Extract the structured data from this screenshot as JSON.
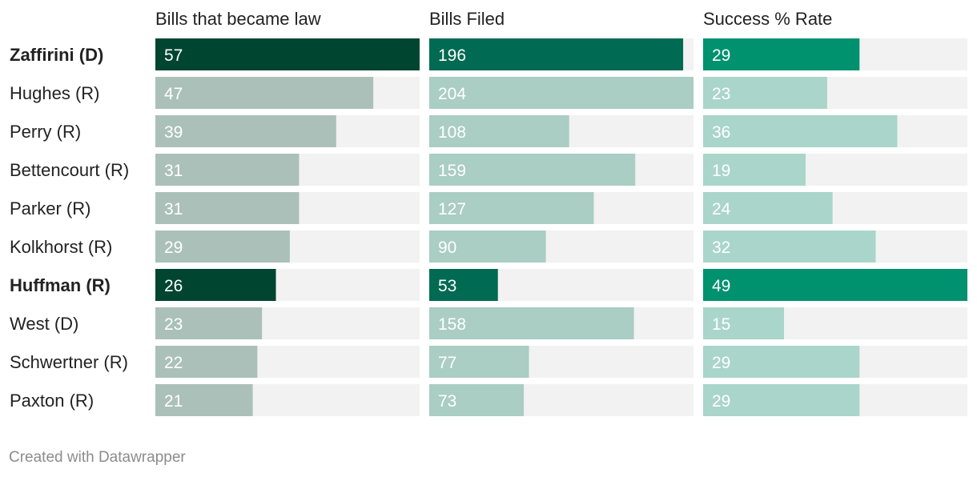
{
  "chart_data": {
    "type": "table",
    "columns": [
      "Bills that became law",
      "Bills Filed",
      "Success % Rate"
    ],
    "rows": [
      {
        "name": "Zaffirini (D)",
        "highlight": true,
        "values": [
          57,
          196,
          29
        ]
      },
      {
        "name": "Hughes (R)",
        "highlight": false,
        "values": [
          47,
          204,
          23
        ]
      },
      {
        "name": "Perry (R)",
        "highlight": false,
        "values": [
          39,
          108,
          36
        ]
      },
      {
        "name": "Bettencourt (R)",
        "highlight": false,
        "values": [
          31,
          159,
          19
        ]
      },
      {
        "name": "Parker (R)",
        "highlight": false,
        "values": [
          31,
          127,
          24
        ]
      },
      {
        "name": "Kolkhorst (R)",
        "highlight": false,
        "values": [
          29,
          90,
          32
        ]
      },
      {
        "name": "Huffman (R)",
        "highlight": true,
        "values": [
          26,
          53,
          49
        ]
      },
      {
        "name": "West (D)",
        "highlight": false,
        "values": [
          23,
          158,
          15
        ]
      },
      {
        "name": "Schwertner (R)",
        "highlight": false,
        "values": [
          22,
          77,
          29
        ]
      },
      {
        "name": "Paxton (R)",
        "highlight": false,
        "values": [
          21,
          73,
          29
        ]
      }
    ],
    "column_max": [
      57,
      204,
      49
    ],
    "colors": {
      "highlight": [
        "#004530",
        "#006a52",
        "#00916f"
      ],
      "normal": [
        "#abc0b8",
        "#aacdc4",
        "#aad5cb"
      ],
      "track": "#f2f2f2"
    }
  },
  "footer": "Created with Datawrapper"
}
